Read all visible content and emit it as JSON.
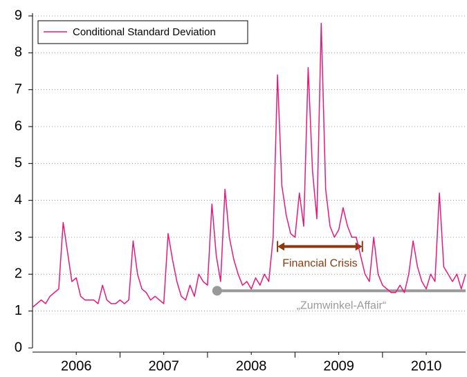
{
  "chart_data": {
    "type": "line",
    "x": [
      2006.0,
      2006.05,
      2006.1,
      2006.15,
      2006.2,
      2006.25,
      2006.3,
      2006.35,
      2006.4,
      2006.45,
      2006.5,
      2006.55,
      2006.6,
      2006.65,
      2006.7,
      2006.75,
      2006.8,
      2006.85,
      2006.9,
      2006.95,
      2007.0,
      2007.05,
      2007.1,
      2007.15,
      2007.2,
      2007.25,
      2007.3,
      2007.35,
      2007.4,
      2007.45,
      2007.5,
      2007.55,
      2007.6,
      2007.65,
      2007.7,
      2007.75,
      2007.8,
      2007.85,
      2007.9,
      2007.95,
      2008.0,
      2008.05,
      2008.1,
      2008.15,
      2008.2,
      2008.25,
      2008.3,
      2008.35,
      2008.4,
      2008.45,
      2008.5,
      2008.55,
      2008.6,
      2008.65,
      2008.7,
      2008.75,
      2008.8,
      2008.85,
      2008.9,
      2008.95,
      2009.0,
      2009.05,
      2009.1,
      2009.15,
      2009.2,
      2009.25,
      2009.3,
      2009.35,
      2009.4,
      2009.45,
      2009.5,
      2009.55,
      2009.6,
      2009.65,
      2009.7,
      2009.75,
      2009.8,
      2009.85,
      2009.9,
      2009.95,
      2010.0,
      2010.05,
      2010.1,
      2010.15,
      2010.2,
      2010.25,
      2010.3,
      2010.35,
      2010.4,
      2010.45,
      2010.5,
      2010.55,
      2010.6,
      2010.65,
      2010.7,
      2010.75,
      2010.8,
      2010.85,
      2010.9,
      2010.95
    ],
    "series": [
      {
        "name": "Conditional Standard Deviation",
        "color": "#e8177d",
        "values": [
          1.1,
          1.2,
          1.3,
          1.2,
          1.4,
          1.5,
          1.6,
          3.4,
          2.6,
          1.8,
          1.9,
          1.4,
          1.3,
          1.3,
          1.3,
          1.2,
          1.7,
          1.3,
          1.2,
          1.2,
          1.3,
          1.2,
          1.3,
          2.9,
          2.0,
          1.6,
          1.5,
          1.3,
          1.4,
          1.3,
          1.2,
          3.1,
          2.4,
          1.8,
          1.4,
          1.3,
          1.7,
          1.4,
          2.0,
          1.8,
          1.7,
          3.9,
          2.5,
          1.8,
          4.3,
          3.0,
          2.4,
          2.0,
          1.7,
          1.8,
          1.6,
          1.9,
          1.7,
          2.0,
          1.8,
          3.0,
          7.4,
          4.4,
          3.6,
          3.1,
          3.0,
          4.2,
          3.3,
          7.6,
          4.8,
          3.5,
          8.8,
          4.3,
          3.3,
          3.0,
          3.2,
          3.8,
          3.3,
          3.0,
          3.0,
          2.5,
          2.0,
          1.8,
          3.0,
          2.0,
          1.7,
          1.6,
          1.5,
          1.5,
          1.7,
          1.5,
          2.0,
          2.9,
          2.2,
          1.8,
          1.6,
          2.0,
          1.8,
          4.2,
          2.2,
          2.0,
          1.8,
          2.0,
          1.6,
          2.0
        ]
      }
    ],
    "xlim": [
      2006,
      2010.95
    ],
    "xticks": [
      {
        "value": 2006.5,
        "label": "2006"
      },
      {
        "value": 2007.5,
        "label": "2007"
      },
      {
        "value": 2008.5,
        "label": "2008"
      },
      {
        "value": 2009.5,
        "label": "2009"
      },
      {
        "value": 2010.5,
        "label": "2010"
      }
    ],
    "xtick_marks": [
      2007,
      2008,
      2009,
      2010
    ],
    "ylim": [
      0,
      9
    ],
    "yticks": [
      0,
      1,
      2,
      3,
      4,
      5,
      6,
      7,
      8,
      9
    ],
    "grid": true,
    "legend": "upper left",
    "annotations": [
      {
        "text": "Financial Crisis",
        "x": [
          2008.8,
          2009.77
        ],
        "y": 2.75,
        "color": "#8b3a0f",
        "style": "arrow"
      },
      {
        "text": "„Zumwinkel-Affair“",
        "x": [
          2008.11,
          2010.95
        ],
        "y": 1.55,
        "color": "#999999",
        "style": "dot-line"
      }
    ]
  }
}
